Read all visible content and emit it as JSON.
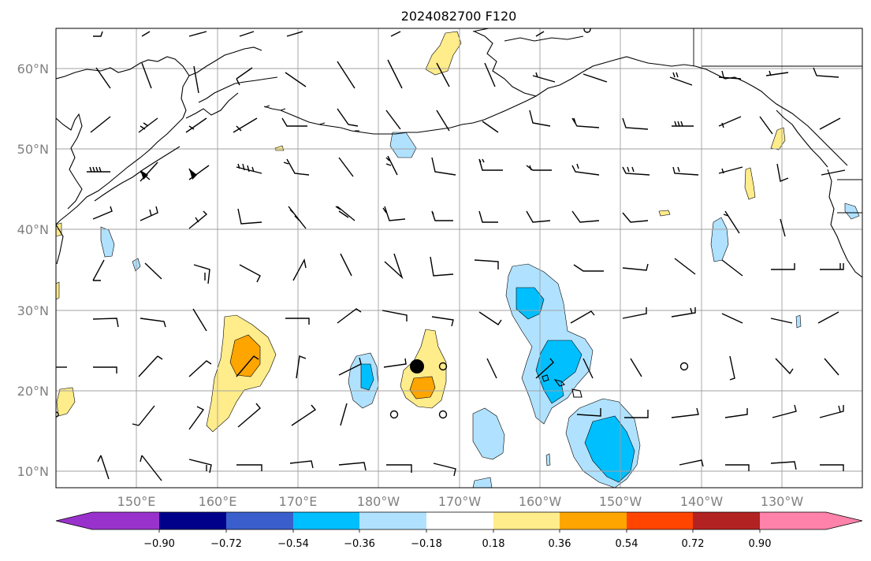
{
  "title": "2024082700 F120",
  "map": {
    "lat_labels": [
      "60°N",
      "50°N",
      "40°N",
      "30°N",
      "20°N",
      "10°N"
    ],
    "lon_labels": [
      "150°E",
      "160°E",
      "170°E",
      "180°W",
      "170°W",
      "160°W",
      "150°W",
      "140°W",
      "130°W"
    ],
    "grid": true,
    "extent_lon": [
      140,
      240
    ],
    "extent_lat": [
      8,
      65
    ]
  },
  "colorbar": {
    "labels": [
      "−0.90",
      "−0.72",
      "−0.54",
      "−0.36",
      "−0.18",
      "0.18",
      "0.36",
      "0.54",
      "0.72",
      "0.90"
    ],
    "colors": [
      "#9932cc",
      "#00008b",
      "#3a5fcd",
      "#00bfff",
      "#b0e2ff",
      "#ffffff",
      "#ffec8b",
      "#ffa500",
      "#ff4500",
      "#b22222",
      "#ff82ab"
    ],
    "orientation": "horizontal",
    "extend": "both"
  },
  "markers": {
    "storm_center_color": "#000000"
  }
}
